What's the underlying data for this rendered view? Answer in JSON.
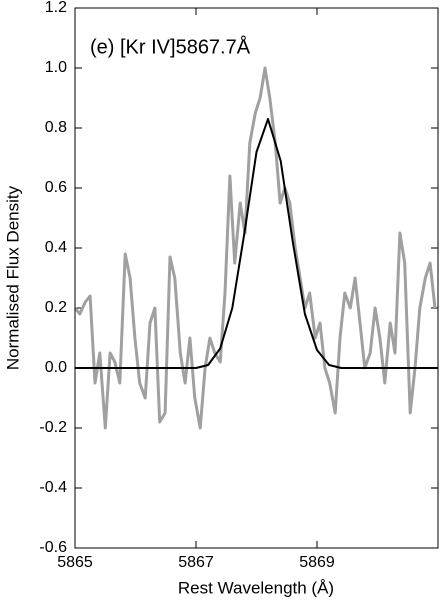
{
  "chart_data": {
    "type": "line",
    "annotation": "(e) [Kr IV]5867.7Å",
    "xlabel": "Rest Wavelength (Å)",
    "ylabel": "Normalised Flux Density",
    "xlim": [
      5865,
      5871
    ],
    "ylim": [
      -0.6,
      1.2
    ],
    "xticks": [
      5865,
      5867,
      5869
    ],
    "yticks": [
      1.2,
      {
        "value": 1,
        "label": "1.0"
      },
      0.8,
      0.6,
      0.4,
      0.2,
      {
        "value": 0,
        "label": "0.0"
      },
      -0.2,
      -0.4,
      -0.6
    ],
    "series": [
      {
        "color": "#a0a0a0",
        "x": [
          5865.0,
          5865.08,
          5865.17,
          5865.25,
          5865.33,
          5865.41,
          5865.5,
          5865.58,
          5865.66,
          5865.74,
          5865.83,
          5865.91,
          5865.99,
          5866.07,
          5866.16,
          5866.24,
          5866.32,
          5866.4,
          5866.49,
          5866.57,
          5866.65,
          5866.74,
          5866.82,
          5866.9,
          5866.98,
          5867.07,
          5867.15,
          5867.23,
          5867.31,
          5867.4,
          5867.48,
          5867.56,
          5867.64,
          5867.73,
          5867.81,
          5867.89,
          5867.98,
          5868.06,
          5868.14,
          5868.22,
          5868.31,
          5868.39,
          5868.47,
          5868.55,
          5868.64,
          5868.72,
          5868.8,
          5868.88,
          5868.97,
          5869.05,
          5869.13,
          5869.21,
          5869.3,
          5869.38,
          5869.46,
          5869.55,
          5869.63,
          5869.71,
          5869.79,
          5869.88,
          5869.96,
          5870.04,
          5870.12,
          5870.21,
          5870.29,
          5870.37,
          5870.45,
          5870.54,
          5870.62,
          5870.7,
          5870.79,
          5870.87,
          5870.95
        ],
        "values": [
          0.2,
          0.18,
          0.22,
          0.24,
          -0.05,
          0.05,
          -0.2,
          0.05,
          0.02,
          -0.05,
          0.38,
          0.3,
          0.1,
          -0.05,
          -0.1,
          0.15,
          0.2,
          -0.18,
          -0.15,
          0.37,
          0.3,
          0.05,
          -0.05,
          0.1,
          -0.1,
          -0.2,
          0.0,
          0.1,
          0.05,
          0.02,
          0.25,
          0.64,
          0.35,
          0.55,
          0.45,
          0.75,
          0.85,
          0.9,
          1.0,
          0.9,
          0.75,
          0.55,
          0.6,
          0.55,
          0.4,
          0.3,
          0.2,
          0.25,
          0.1,
          0.15,
          0.0,
          -0.05,
          -0.15,
          0.1,
          0.25,
          0.2,
          0.3,
          0.15,
          0.0,
          0.05,
          0.2,
          0.1,
          -0.05,
          0.15,
          0.05,
          0.45,
          0.35,
          -0.15,
          0.0,
          0.2,
          0.3,
          0.35,
          0.2
        ]
      },
      {
        "color": "#000000",
        "x": [
          5865,
          5867,
          5867.2,
          5867.4,
          5867.6,
          5867.8,
          5868.0,
          5868.19,
          5868.4,
          5868.6,
          5868.8,
          5869.0,
          5869.2,
          5869.4,
          5871
        ],
        "values": [
          0,
          0,
          0.01,
          0.065,
          0.2,
          0.45,
          0.72,
          0.83,
          0.69,
          0.42,
          0.18,
          0.06,
          0.01,
          0,
          0
        ]
      }
    ]
  }
}
